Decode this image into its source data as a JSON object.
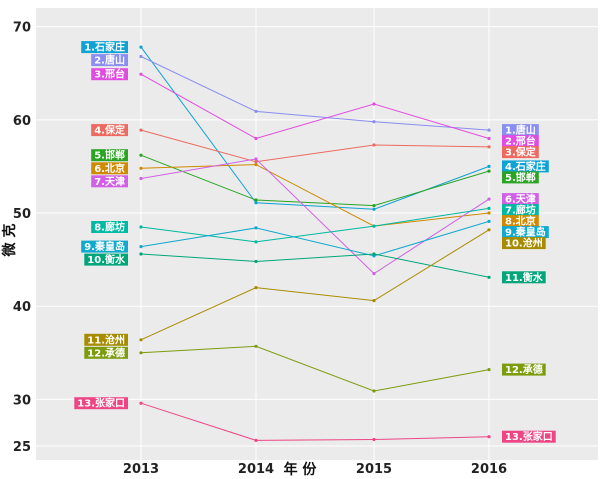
{
  "chart_data": {
    "type": "line",
    "x": [
      "2013",
      "2014",
      "2015",
      "2016"
    ],
    "xlabel": "年 份",
    "ylabel": "微 克",
    "yticks": [
      25,
      30,
      40,
      50,
      60,
      70
    ],
    "ylim": [
      23.5,
      72
    ],
    "grid": true,
    "legend": "none",
    "series": [
      {
        "name": "1.石家庄",
        "label_2016": "4.石家庄",
        "color": "#0fa3d4",
        "values": [
          67.8,
          51.1,
          50.4,
          55.0
        ]
      },
      {
        "name": "2.唐山",
        "label_2016": "1.唐山",
        "color": "#8a8ef0",
        "values": [
          66.8,
          60.9,
          59.8,
          58.9
        ]
      },
      {
        "name": "3.邢台",
        "label_2016": "2.邢台",
        "color": "#e14ce0",
        "values": [
          64.9,
          58.0,
          61.7,
          58.0
        ]
      },
      {
        "name": "4.保定",
        "label_2016": "3.保定",
        "color": "#ec6a5f",
        "values": [
          58.9,
          55.5,
          57.3,
          57.1
        ]
      },
      {
        "name": "5.邯郸",
        "label_2016": "5.邯郸",
        "color": "#2aa422",
        "values": [
          56.2,
          51.4,
          50.8,
          54.5
        ]
      },
      {
        "name": "6.北京",
        "label_2016": "8.北京",
        "color": "#d08a00",
        "values": [
          54.8,
          55.2,
          48.6,
          50.0
        ]
      },
      {
        "name": "7.天津",
        "label_2016": "6.天津",
        "color": "#d160e6",
        "values": [
          53.7,
          55.8,
          43.5,
          51.5
        ]
      },
      {
        "name": "8.廊坊",
        "label_2016": "7.廊坊",
        "color": "#00b9a2",
        "values": [
          48.5,
          46.9,
          48.6,
          50.5
        ]
      },
      {
        "name": "9.秦皇岛",
        "label_2016": "9.秦皇岛",
        "color": "#12a9cf",
        "values": [
          46.4,
          48.4,
          45.4,
          49.1
        ]
      },
      {
        "name": "10.衡水",
        "label_2016": "11.衡水",
        "color": "#00a67a",
        "values": [
          45.6,
          44.8,
          45.6,
          43.1
        ]
      },
      {
        "name": "11.沧州",
        "label_2016": "10.沧州",
        "color": "#a88c00",
        "values": [
          36.4,
          42.0,
          40.6,
          48.2
        ]
      },
      {
        "name": "12.承德",
        "label_2016": "12.承德",
        "color": "#7c9c0c",
        "values": [
          35.0,
          35.7,
          30.9,
          33.2
        ]
      },
      {
        "name": "13.张家口",
        "label_2016": "13.张家口",
        "color": "#ee4585",
        "values": [
          29.6,
          25.6,
          25.7,
          26.0
        ]
      }
    ]
  }
}
